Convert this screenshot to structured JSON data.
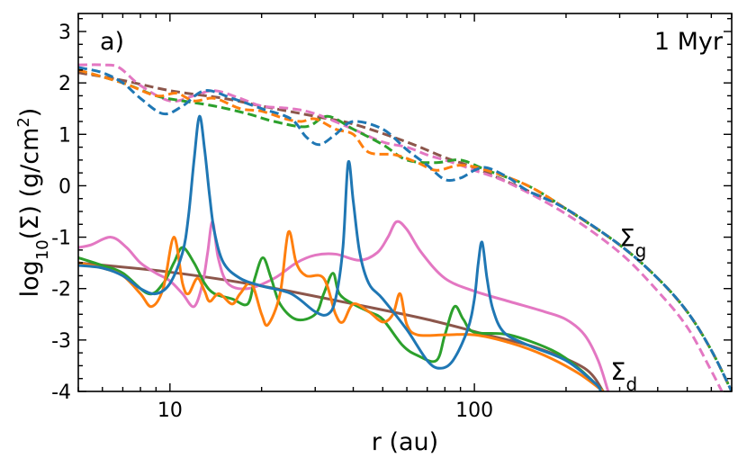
{
  "chart_data": {
    "type": "line",
    "xscale": "log",
    "xlabel": "r (au)",
    "ylabel": [
      {
        "text": "log"
      },
      {
        "text": "10",
        "shift": "sub"
      },
      {
        "text": "(Σ) (g/cm"
      },
      {
        "text": "2",
        "shift": "super"
      },
      {
        "text": ")"
      }
    ],
    "annotations": [
      {
        "text": "a)",
        "corner": "top-left"
      },
      {
        "text": "1 Myr",
        "corner": "top-right"
      },
      {
        "text": "Σ",
        "sub": "g",
        "at": [
          300,
          -1.0
        ]
      },
      {
        "text": "Σ",
        "sub": "d",
        "at": [
          280,
          -3.6
        ]
      }
    ],
    "xlim": [
      5,
      700
    ],
    "ylim": [
      -4,
      3.35
    ],
    "xticks": [
      10,
      100
    ],
    "xminorticks": [
      5,
      6,
      7,
      8,
      9,
      20,
      30,
      40,
      50,
      60,
      70,
      80,
      90,
      200,
      300,
      400,
      500,
      600,
      700
    ],
    "yticks": [
      3,
      2,
      1,
      0,
      -1,
      -2,
      -3,
      -4
    ],
    "yminorticks": [
      3.25,
      2.75,
      2.5,
      2.25,
      1.75,
      1.5,
      1.25,
      0.75,
      0.5,
      0.25,
      -0.25,
      -0.5,
      -0.75,
      -1.25,
      -1.5,
      -1.75,
      -2.25,
      -2.5,
      -2.75,
      -3.25,
      -3.5,
      -3.75
    ],
    "series": [
      {
        "color": "#8c564b",
        "dash": true,
        "x": [
          5,
          7,
          10,
          15,
          20,
          30,
          40,
          60,
          80,
          100,
          150,
          200,
          300,
          400,
          500,
          600,
          700
        ],
        "values": [
          2.2,
          2.05,
          1.85,
          1.7,
          1.55,
          1.35,
          1.2,
          0.85,
          0.55,
          0.35,
          -0.1,
          -0.45,
          -1.15,
          -1.8,
          -2.45,
          -3.2,
          -4.0
        ]
      },
      {
        "color": "#e377c2",
        "dash": true,
        "x": [
          5,
          6,
          6.8,
          8,
          10,
          12,
          14,
          17,
          20,
          25,
          30,
          40,
          50,
          60,
          70,
          80,
          90,
          100,
          130,
          200,
          300,
          400,
          500,
          600,
          650
        ],
        "values": [
          2.35,
          2.35,
          2.3,
          1.95,
          1.65,
          1.75,
          1.85,
          1.7,
          1.55,
          1.5,
          1.4,
          1.1,
          0.85,
          0.75,
          0.6,
          0.5,
          0.4,
          0.3,
          0.05,
          -0.55,
          -1.3,
          -2.05,
          -2.75,
          -3.6,
          -4.0
        ]
      },
      {
        "color": "#2ca02c",
        "dash": true,
        "x": [
          5,
          7,
          9,
          11,
          14,
          18,
          22,
          28,
          33,
          40,
          50,
          60,
          75,
          90,
          110,
          150,
          200,
          300,
          400,
          500,
          600,
          700
        ],
        "values": [
          2.25,
          2.0,
          1.75,
          1.65,
          1.55,
          1.4,
          1.25,
          1.15,
          1.35,
          1.1,
          0.8,
          0.5,
          0.45,
          0.5,
          0.3,
          0.0,
          -0.45,
          -1.15,
          -1.8,
          -2.45,
          -3.2,
          -4.0
        ]
      },
      {
        "color": "#ff7f0e",
        "dash": true,
        "x": [
          5,
          7,
          9,
          10.5,
          12,
          14,
          17,
          20,
          24,
          27,
          30,
          35,
          40,
          45,
          55,
          65,
          75,
          90,
          110,
          150,
          200,
          300,
          400,
          500,
          600,
          700
        ],
        "values": [
          2.25,
          2.0,
          1.75,
          1.8,
          1.65,
          1.7,
          1.5,
          1.45,
          1.3,
          1.25,
          1.3,
          1.1,
          1.0,
          0.65,
          0.6,
          0.45,
          0.3,
          0.4,
          0.3,
          0.0,
          -0.45,
          -1.15,
          -1.8,
          -2.45,
          -3.2,
          -4.0
        ]
      },
      {
        "color": "#1f77b4",
        "dash": true,
        "x": [
          5,
          6,
          7,
          8,
          9.5,
          11,
          13,
          16,
          20,
          25,
          28,
          31,
          35,
          40,
          50,
          60,
          70,
          80,
          90,
          100,
          110,
          130,
          150,
          200,
          300,
          400,
          500,
          600,
          700
        ],
        "values": [
          2.3,
          2.2,
          2.0,
          1.7,
          1.4,
          1.55,
          1.85,
          1.7,
          1.5,
          1.3,
          0.95,
          0.8,
          1.0,
          1.25,
          1.1,
          0.7,
          0.4,
          0.12,
          0.15,
          0.3,
          0.35,
          0.15,
          -0.1,
          -0.45,
          -1.15,
          -1.8,
          -2.45,
          -3.2,
          -4.0
        ]
      },
      {
        "color": "#8c564b",
        "dash": false,
        "x": [
          5,
          10,
          20,
          40,
          70,
          110,
          160,
          230,
          265
        ],
        "values": [
          -1.5,
          -1.68,
          -1.95,
          -2.3,
          -2.6,
          -2.9,
          -3.15,
          -3.55,
          -4.0
        ]
      },
      {
        "color": "#e377c2",
        "dash": false,
        "x": [
          5,
          5.5,
          6.4,
          7.2,
          8,
          9,
          10,
          11,
          12,
          12.8,
          13.3,
          13.8,
          14.4,
          15.5,
          18,
          22,
          26,
          30,
          35,
          42,
          48,
          52,
          55.5,
          60,
          67,
          80,
          100,
          130,
          170,
          200,
          230,
          255,
          275
        ],
        "values": [
          -1.2,
          -1.15,
          -1.0,
          -1.2,
          -1.5,
          -1.7,
          -1.85,
          -2.1,
          -2.35,
          -1.9,
          -1.3,
          -0.7,
          -1.4,
          -1.9,
          -2.0,
          -1.8,
          -1.5,
          -1.35,
          -1.33,
          -1.45,
          -1.3,
          -1.0,
          -0.7,
          -0.85,
          -1.3,
          -1.8,
          -2.05,
          -2.25,
          -2.45,
          -2.6,
          -2.9,
          -3.4,
          -4.0
        ]
      },
      {
        "color": "#2ca02c",
        "dash": false,
        "x": [
          5,
          6,
          7,
          8.5,
          9.5,
          10.3,
          11,
          12,
          13,
          14,
          16,
          18,
          19,
          20.2,
          21.5,
          23,
          26,
          30,
          32,
          34.3,
          36,
          40,
          45,
          50,
          58,
          65,
          75,
          80,
          86,
          92,
          100,
          130,
          180,
          220,
          265
        ],
        "values": [
          -1.4,
          -1.55,
          -1.7,
          -2.1,
          -1.9,
          -1.5,
          -1.2,
          -1.5,
          -1.9,
          -2.1,
          -2.2,
          -2.3,
          -1.8,
          -1.4,
          -1.8,
          -2.3,
          -2.6,
          -2.5,
          -2.1,
          -1.7,
          -2.1,
          -2.3,
          -2.45,
          -2.6,
          -3.1,
          -3.3,
          -3.4,
          -2.9,
          -2.35,
          -2.6,
          -2.85,
          -2.9,
          -3.2,
          -3.55,
          -4.0
        ]
      },
      {
        "color": "#ff7f0e",
        "dash": false,
        "x": [
          5,
          6,
          7,
          8,
          8.7,
          9.5,
          10.3,
          11,
          11.5,
          12.3,
          13,
          13.5,
          14.5,
          16,
          17,
          18.5,
          20,
          21,
          23,
          24.5,
          26,
          28,
          32,
          35,
          37,
          40,
          45,
          50,
          54,
          57,
          60,
          65,
          80,
          100,
          130,
          170,
          220,
          265
        ],
        "values": [
          -1.5,
          -1.6,
          -1.75,
          -2.1,
          -2.35,
          -2.0,
          -1.0,
          -1.9,
          -2.1,
          -1.8,
          -2.05,
          -2.25,
          -2.1,
          -2.3,
          -2.1,
          -1.9,
          -2.5,
          -2.7,
          -2.1,
          -0.9,
          -1.5,
          -1.75,
          -1.8,
          -2.5,
          -2.65,
          -2.3,
          -2.45,
          -2.65,
          -2.5,
          -2.1,
          -2.7,
          -2.9,
          -2.9,
          -2.9,
          -3.05,
          -3.3,
          -3.65,
          -4.0
        ]
      },
      {
        "color": "#1f77b4",
        "dash": false,
        "x": [
          5,
          6,
          7,
          8,
          9,
          10,
          11,
          11.5,
          12,
          12.5,
          13,
          13.5,
          14,
          15,
          17,
          20,
          25,
          30,
          33,
          35,
          37,
          38.5,
          40,
          42,
          45,
          50,
          60,
          70,
          77,
          85,
          95,
          100,
          103,
          106,
          110,
          115,
          125,
          150,
          200,
          250,
          260
        ],
        "values": [
          -1.55,
          -1.6,
          -1.75,
          -2.0,
          -2.1,
          -1.9,
          -1.3,
          -0.6,
          0.5,
          1.35,
          0.7,
          -0.2,
          -0.9,
          -1.5,
          -1.8,
          -1.95,
          -2.1,
          -2.45,
          -2.5,
          -2.2,
          -1.2,
          0.45,
          -0.3,
          -1.3,
          -1.9,
          -2.2,
          -2.8,
          -3.4,
          -3.55,
          -3.4,
          -2.8,
          -2.2,
          -1.5,
          -1.1,
          -1.8,
          -2.4,
          -2.85,
          -3.1,
          -3.4,
          -3.85,
          -4.0
        ]
      }
    ]
  }
}
